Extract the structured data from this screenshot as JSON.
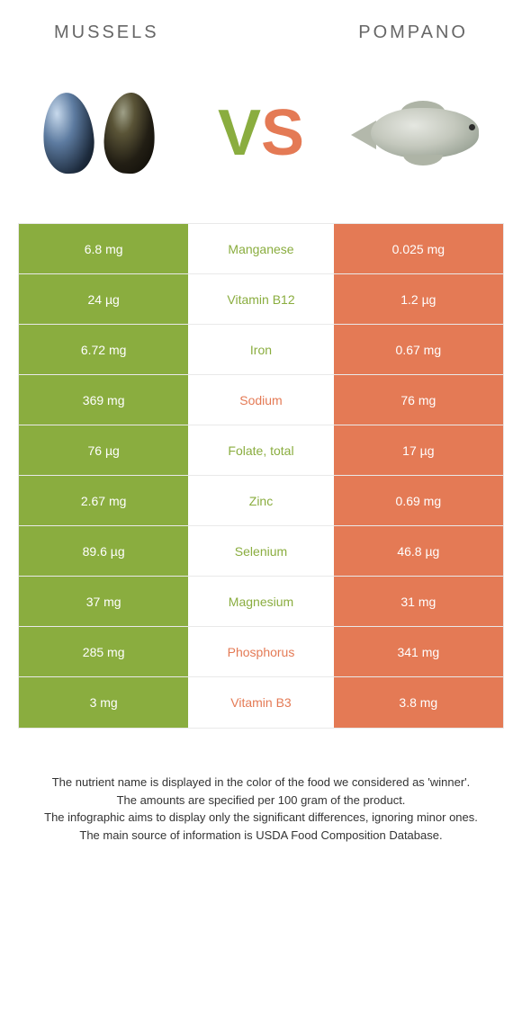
{
  "header": {
    "left_title": "MUSSELS",
    "right_title": "POMPANO",
    "vs_v": "V",
    "vs_s": "S"
  },
  "colors": {
    "green": "#8aad3f",
    "orange": "#e47a55",
    "white": "#ffffff",
    "row_border": "#e9e9e9",
    "text": "#333333"
  },
  "table": {
    "rows": [
      {
        "nutrient": "Manganese",
        "left": "6.8 mg",
        "right": "0.025 mg",
        "winner": "left"
      },
      {
        "nutrient": "Vitamin B12",
        "left": "24 µg",
        "right": "1.2 µg",
        "winner": "left"
      },
      {
        "nutrient": "Iron",
        "left": "6.72 mg",
        "right": "0.67 mg",
        "winner": "left"
      },
      {
        "nutrient": "Sodium",
        "left": "369 mg",
        "right": "76 mg",
        "winner": "right"
      },
      {
        "nutrient": "Folate, total",
        "left": "76 µg",
        "right": "17 µg",
        "winner": "left"
      },
      {
        "nutrient": "Zinc",
        "left": "2.67 mg",
        "right": "0.69 mg",
        "winner": "left"
      },
      {
        "nutrient": "Selenium",
        "left": "89.6 µg",
        "right": "46.8 µg",
        "winner": "left"
      },
      {
        "nutrient": "Magnesium",
        "left": "37 mg",
        "right": "31 mg",
        "winner": "left"
      },
      {
        "nutrient": "Phosphorus",
        "left": "285 mg",
        "right": "341 mg",
        "winner": "right"
      },
      {
        "nutrient": "Vitamin B3",
        "left": "3 mg",
        "right": "3.8 mg",
        "winner": "right"
      }
    ]
  },
  "footer": {
    "line1": "The nutrient name is displayed in the color of the food we considered as 'winner'.",
    "line2": "The amounts are specified per 100 gram of the product.",
    "line3": "The infographic aims to display only the significant differences, ignoring minor ones.",
    "line4": "The main source of information is USDA Food Composition Database."
  }
}
